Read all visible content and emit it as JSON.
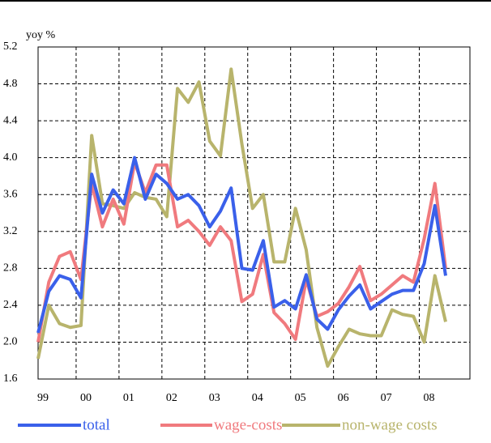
{
  "chart_data": {
    "type": "line",
    "y_label": "yoy %",
    "categories": [
      "99",
      null,
      null,
      null,
      "00",
      null,
      null,
      null,
      "01",
      null,
      null,
      null,
      "02",
      null,
      null,
      null,
      "03",
      null,
      null,
      null,
      "04",
      null,
      null,
      null,
      "05",
      null,
      null,
      null,
      "06",
      null,
      null,
      null,
      "07",
      null,
      null,
      null,
      "08",
      null,
      null
    ],
    "series": [
      {
        "name": "total",
        "color": "#3a60ea",
        "values": [
          2.1,
          2.55,
          2.72,
          2.68,
          2.48,
          3.82,
          3.4,
          3.65,
          3.5,
          4.0,
          3.55,
          3.82,
          3.72,
          3.55,
          3.6,
          3.48,
          3.25,
          3.42,
          3.67,
          2.8,
          2.78,
          3.1,
          2.38,
          2.45,
          2.36,
          2.73,
          2.25,
          2.14,
          2.35,
          2.5,
          2.62,
          2.36,
          2.44,
          2.52,
          2.56,
          2.56,
          2.85,
          3.48,
          2.72
        ]
      },
      {
        "name": "wage-costs",
        "color": "#f07a7e",
        "values": [
          2.0,
          2.65,
          2.93,
          2.98,
          2.68,
          3.72,
          3.25,
          3.55,
          3.28,
          3.95,
          3.62,
          3.92,
          3.92,
          3.25,
          3.32,
          3.2,
          3.05,
          3.25,
          3.1,
          2.44,
          2.52,
          2.95,
          2.32,
          2.2,
          2.03,
          2.68,
          2.28,
          2.33,
          2.42,
          2.6,
          2.82,
          2.45,
          2.52,
          2.62,
          2.72,
          2.65,
          3.12,
          3.72,
          2.8
        ]
      },
      {
        "name": "non-wage costs",
        "color": "#b8b46c",
        "values": [
          1.82,
          2.4,
          2.2,
          2.16,
          2.18,
          4.24,
          3.5,
          3.48,
          3.45,
          3.62,
          3.57,
          3.55,
          3.36,
          4.75,
          4.6,
          4.82,
          4.18,
          4.02,
          4.96,
          4.15,
          3.45,
          3.6,
          2.87,
          2.87,
          3.45,
          3.0,
          2.16,
          1.74,
          1.95,
          2.14,
          2.09,
          2.07,
          2.07,
          2.35,
          2.3,
          2.28,
          2.0,
          2.72,
          2.22
        ]
      }
    ],
    "ylim": [
      1.6,
      5.2
    ],
    "yticks": [
      1.6,
      {
        "value": 2.0,
        "label": "2.0"
      },
      2.4,
      2.8,
      3.2,
      3.6,
      {
        "value": 4.0,
        "label": "4.0"
      },
      4.4,
      4.8,
      5.2
    ],
    "grid": true
  }
}
